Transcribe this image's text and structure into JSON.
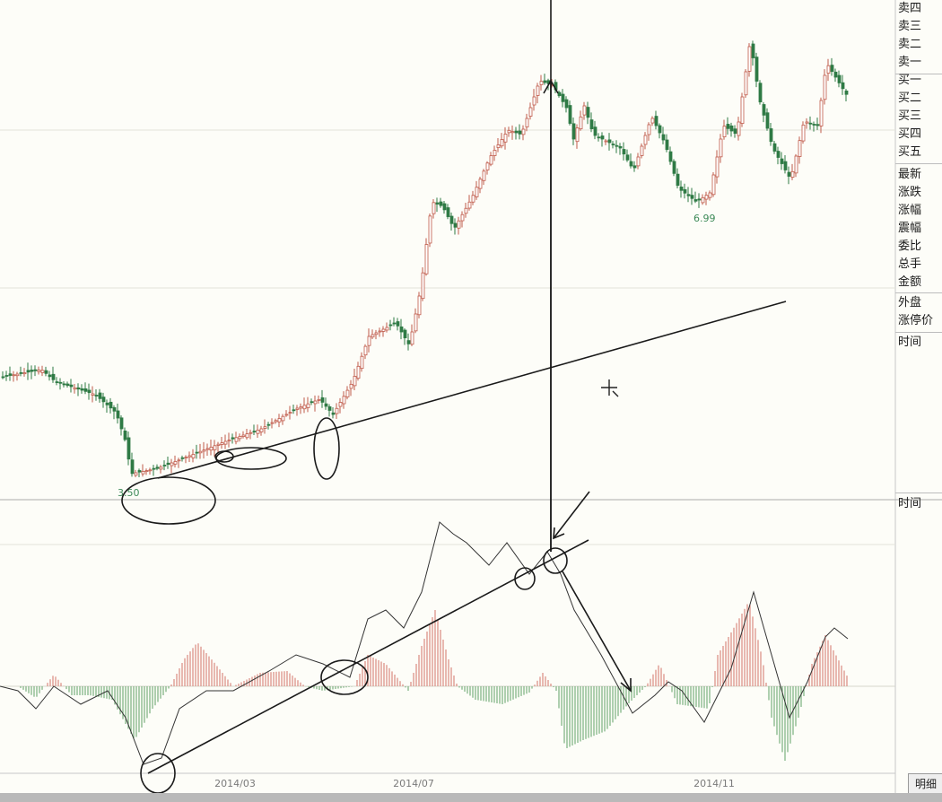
{
  "sidebar": {
    "quote_group": [
      "卖四",
      "卖三",
      "卖二",
      "卖一",
      "买一",
      "买二",
      "买三",
      "买四",
      "买五"
    ],
    "stats_group": [
      "最新",
      "涨跌",
      "涨幅",
      "震幅",
      "委比",
      "总手",
      "金额"
    ],
    "extra_group": [
      "外盘",
      "涨停价"
    ],
    "time_label_1": "时间",
    "time_label_2": "时间"
  },
  "bottom_tab": {
    "label": "明细"
  },
  "chart_data": [
    {
      "type": "candlestick",
      "panel": "price",
      "x_ticks": [
        "2014/03",
        "2014/07",
        "2014/11"
      ],
      "annotations": [
        {
          "text": "3.50",
          "value": 3.5
        },
        {
          "text": "6.99",
          "value": 6.99
        }
      ],
      "colors": {
        "up": "#c05a4a",
        "down": "#2f7a45"
      }
    },
    {
      "type": "bar",
      "panel": "macd",
      "colors": {
        "positive": "#d98a80",
        "negative": "#79b07e",
        "line": "#333333"
      }
    }
  ]
}
